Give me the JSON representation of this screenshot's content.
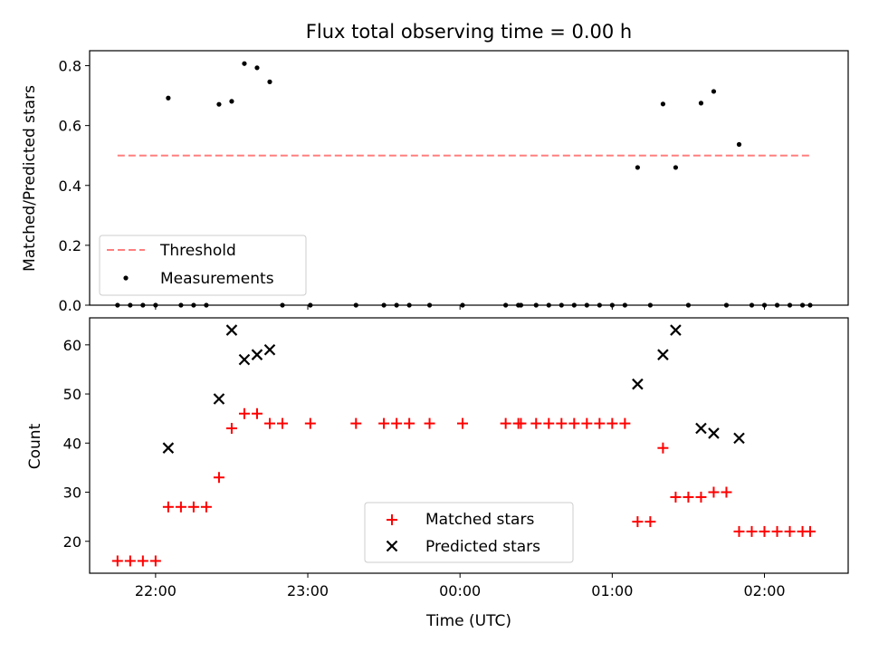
{
  "title": "Flux total observing time = 0.00 h",
  "chart_data": [
    {
      "type": "scatter",
      "panel": "top",
      "title": "Flux total observing time = 0.00 h",
      "xlabel": "",
      "ylabel": "Matched/Predicted stars",
      "xlim": [
        "21:34",
        "02:33"
      ],
      "ylim": [
        0,
        0.85
      ],
      "x_ticks": [
        "22:00",
        "23:00",
        "00:00",
        "01:00",
        "02:00"
      ],
      "y_ticks": [
        "0.0",
        "0.2",
        "0.4",
        "0.6",
        "0.8"
      ],
      "legend_position": "lower-left",
      "threshold": {
        "name": "Threshold",
        "value": 0.5,
        "x_range": [
          "21:45",
          "02:18"
        ],
        "color": "#ff7f7f"
      },
      "series": [
        {
          "name": "Measurements",
          "color": "#000000",
          "points": [
            [
              "21:45",
              0
            ],
            [
              "21:50",
              0
            ],
            [
              "21:55",
              0
            ],
            [
              "22:00",
              0
            ],
            [
              "22:05",
              0.692
            ],
            [
              "22:10",
              0
            ],
            [
              "22:15",
              0
            ],
            [
              "22:20",
              0
            ],
            [
              "22:25",
              0.671
            ],
            [
              "22:30",
              0.681
            ],
            [
              "22:35",
              0.807
            ],
            [
              "22:40",
              0.793
            ],
            [
              "22:45",
              0.746
            ],
            [
              "22:50",
              0
            ],
            [
              "23:01",
              0
            ],
            [
              "23:19",
              0
            ],
            [
              "23:30",
              0
            ],
            [
              "23:35",
              0
            ],
            [
              "23:40",
              0
            ],
            [
              "23:48",
              0
            ],
            [
              "00:01",
              0
            ],
            [
              "00:18",
              0
            ],
            [
              "00:23",
              0
            ],
            [
              "00:24",
              0
            ],
            [
              "00:30",
              0
            ],
            [
              "00:35",
              0
            ],
            [
              "00:40",
              0
            ],
            [
              "00:45",
              0
            ],
            [
              "00:50",
              0
            ],
            [
              "00:55",
              0
            ],
            [
              "01:00",
              0
            ],
            [
              "01:05",
              0
            ],
            [
              "01:10",
              0.46
            ],
            [
              "01:15",
              0
            ],
            [
              "01:20",
              0.672
            ],
            [
              "01:25",
              0.46
            ],
            [
              "01:30",
              0
            ],
            [
              "01:35",
              0.675
            ],
            [
              "01:40",
              0.714
            ],
            [
              "01:45",
              0
            ],
            [
              "01:50",
              0.537
            ],
            [
              "01:55",
              0
            ],
            [
              "02:00",
              0
            ],
            [
              "02:05",
              0
            ],
            [
              "02:10",
              0
            ],
            [
              "02:15",
              0
            ],
            [
              "02:18",
              0
            ]
          ]
        }
      ]
    },
    {
      "type": "scatter",
      "panel": "bottom",
      "xlabel": "Time (UTC)",
      "ylabel": "Count",
      "xlim": [
        "21:34",
        "02:33"
      ],
      "ylim": [
        13.5,
        65.5
      ],
      "x_ticks": [
        "22:00",
        "23:00",
        "00:00",
        "01:00",
        "02:00"
      ],
      "y_ticks": [
        "20",
        "30",
        "40",
        "50",
        "60"
      ],
      "legend_position": "lower-center",
      "series": [
        {
          "name": "Matched stars",
          "marker": "plus",
          "color": "#ff0000",
          "points": [
            [
              "21:45",
              16
            ],
            [
              "21:50",
              16
            ],
            [
              "21:55",
              16
            ],
            [
              "22:00",
              16
            ],
            [
              "22:05",
              27
            ],
            [
              "22:10",
              27
            ],
            [
              "22:15",
              27
            ],
            [
              "22:20",
              27
            ],
            [
              "22:25",
              33
            ],
            [
              "22:30",
              43
            ],
            [
              "22:35",
              46
            ],
            [
              "22:40",
              46
            ],
            [
              "22:45",
              44
            ],
            [
              "22:50",
              44
            ],
            [
              "23:01",
              44
            ],
            [
              "23:19",
              44
            ],
            [
              "23:30",
              44
            ],
            [
              "23:35",
              44
            ],
            [
              "23:40",
              44
            ],
            [
              "23:48",
              44
            ],
            [
              "00:01",
              44
            ],
            [
              "00:18",
              44
            ],
            [
              "00:23",
              44
            ],
            [
              "00:24",
              44
            ],
            [
              "00:30",
              44
            ],
            [
              "00:35",
              44
            ],
            [
              "00:40",
              44
            ],
            [
              "00:45",
              44
            ],
            [
              "00:50",
              44
            ],
            [
              "00:55",
              44
            ],
            [
              "01:00",
              44
            ],
            [
              "01:05",
              44
            ],
            [
              "01:10",
              24
            ],
            [
              "01:15",
              24
            ],
            [
              "01:20",
              39
            ],
            [
              "01:25",
              29
            ],
            [
              "01:30",
              29
            ],
            [
              "01:35",
              29
            ],
            [
              "01:40",
              30
            ],
            [
              "01:45",
              30
            ],
            [
              "01:50",
              22
            ],
            [
              "01:55",
              22
            ],
            [
              "02:00",
              22
            ],
            [
              "02:05",
              22
            ],
            [
              "02:10",
              22
            ],
            [
              "02:15",
              22
            ],
            [
              "02:18",
              22
            ]
          ]
        },
        {
          "name": "Predicted stars",
          "marker": "x",
          "color": "#000000",
          "points": [
            [
              "22:05",
              39
            ],
            [
              "22:25",
              49
            ],
            [
              "22:30",
              63
            ],
            [
              "22:35",
              57
            ],
            [
              "22:40",
              58
            ],
            [
              "22:45",
              59
            ],
            [
              "01:10",
              52
            ],
            [
              "01:20",
              58
            ],
            [
              "01:25",
              63
            ],
            [
              "01:35",
              43
            ],
            [
              "01:40",
              42
            ],
            [
              "01:50",
              41
            ]
          ]
        }
      ]
    }
  ]
}
